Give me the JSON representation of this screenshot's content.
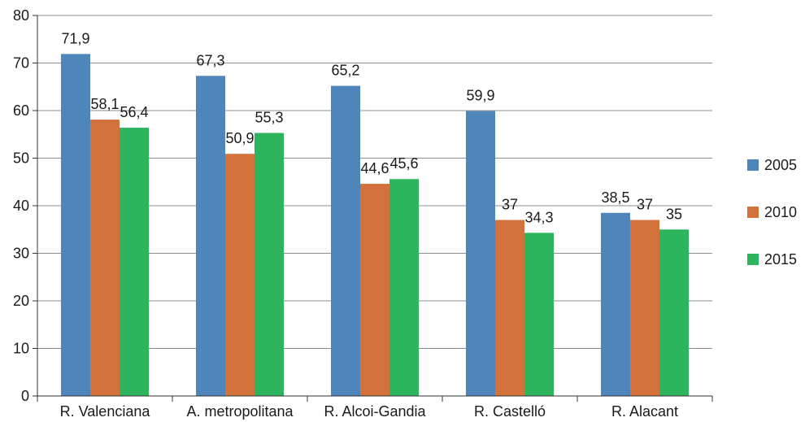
{
  "chart_data": {
    "type": "bar",
    "title": "",
    "xlabel": "",
    "ylabel": "",
    "ylim": [
      0,
      80
    ],
    "yticks": [
      0,
      10,
      20,
      30,
      40,
      50,
      60,
      70,
      80
    ],
    "grid": true,
    "legend_position": "right",
    "categories": [
      "R. Valenciana",
      "A. metropolitana",
      "R. Alcoi-Gandia",
      "R. Castelló",
      "R. Alacant"
    ],
    "series": [
      {
        "name": "2005",
        "color": "#4e86bb",
        "values": [
          71.9,
          67.3,
          65.2,
          59.9,
          38.5
        ],
        "labels": [
          "71,9",
          "67,3",
          "65,2",
          "59,9",
          "38,5"
        ]
      },
      {
        "name": "2010",
        "color": "#d2713a",
        "values": [
          58.1,
          50.9,
          44.6,
          37,
          37
        ],
        "labels": [
          "58,1",
          "50,9",
          "44,6",
          "37",
          "37"
        ]
      },
      {
        "name": "2015",
        "color": "#2db55d",
        "values": [
          56.4,
          55.3,
          45.6,
          34.3,
          35
        ],
        "labels": [
          "56,4",
          "55,3",
          "45,6",
          "34,3",
          "35"
        ]
      }
    ]
  }
}
